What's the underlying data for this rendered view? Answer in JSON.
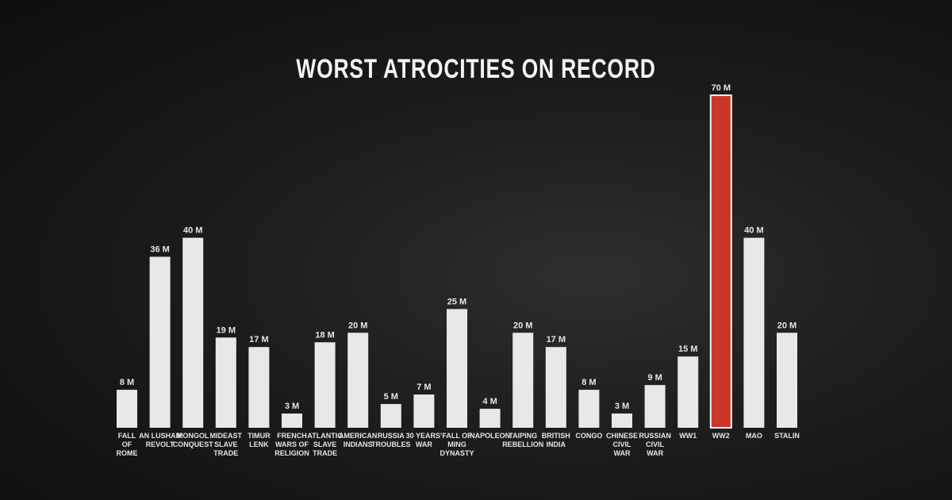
{
  "chart_data": {
    "type": "bar",
    "title": "WORST ATROCITIES ON RECORD",
    "xlabel": "",
    "ylabel": "",
    "ylim": [
      0,
      70
    ],
    "grid": false,
    "categories": [
      [
        "FALL",
        "OF",
        "ROME"
      ],
      [
        "AN LUSHAN",
        "REVOLT"
      ],
      [
        "MONGOL",
        "CONQUEST"
      ],
      [
        "MIDEAST",
        "SLAVE",
        "TRADE"
      ],
      [
        "TIMUR",
        "LENK"
      ],
      [
        "FRENCH",
        "WARS OF",
        "RELIGION"
      ],
      [
        "ATLANTIC",
        "SLAVE",
        "TRADE"
      ],
      [
        "AMERICAN",
        "INDIANS"
      ],
      [
        "RUSSIA",
        "TROUBLES"
      ],
      [
        "30 YEARS'",
        "WAR"
      ],
      [
        "FALL OF",
        "MING",
        "DYNASTY"
      ],
      [
        "NAPOLEON"
      ],
      [
        "TAIPING",
        "REBELLION"
      ],
      [
        "BRITISH",
        "INDIA"
      ],
      [
        "CONGO"
      ],
      [
        "CHINESE",
        "CIVIL",
        "WAR"
      ],
      [
        "RUSSIAN",
        "CIVIL",
        "WAR"
      ],
      [
        "WW1"
      ],
      [
        "WW2"
      ],
      [
        "MAO"
      ],
      [
        "STALIN"
      ]
    ],
    "values": [
      8,
      36,
      40,
      19,
      17,
      3,
      18,
      20,
      5,
      7,
      25,
      4,
      20,
      17,
      8,
      3,
      9,
      15,
      70,
      40,
      20
    ],
    "value_labels": [
      "8 M",
      "36 M",
      "40 M",
      "19 M",
      "17 M",
      "3 M",
      "18 M",
      "20 M",
      "5 M",
      "7 M",
      "25 M",
      "4 M",
      "20 M",
      "17 M",
      "8 M",
      "3 M",
      "9 M",
      "15 M",
      "70 M",
      "40 M",
      "20 M"
    ],
    "highlight_index": 18,
    "colors": {
      "bar": "#e8e8e8",
      "highlight": "#c8372a",
      "highlight_border": "#f2f2f2",
      "text": "#e6e6e6"
    }
  }
}
